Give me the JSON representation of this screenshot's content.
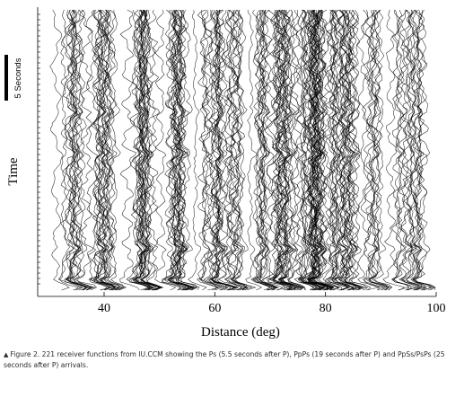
{
  "chart_data": {
    "type": "line",
    "title": "",
    "xlabel": "Distance (deg)",
    "ylabel": "Time",
    "xlim": [
      28,
      100
    ],
    "x_ticks": [
      40,
      60,
      80,
      100
    ],
    "x_tick_labels": [
      "40",
      "60",
      "80",
      "100"
    ],
    "scale_bar": {
      "label": "5 Seconds",
      "seconds": 5
    },
    "time_window_seconds": 40,
    "trace_count": 221,
    "dense_distance_bands_deg": [
      [
        33,
        37
      ],
      [
        39,
        41
      ],
      [
        46,
        48
      ],
      [
        52,
        54
      ],
      [
        58,
        64
      ],
      [
        67,
        69
      ],
      [
        71,
        73
      ],
      [
        77,
        79
      ],
      [
        80,
        85
      ],
      [
        88,
        90
      ],
      [
        93,
        96
      ]
    ],
    "phases": [
      {
        "name": "Ps",
        "seconds_after_P": 5.5
      },
      {
        "name": "PpPs",
        "seconds_after_P": 19
      },
      {
        "name": "PpSs/PsPs",
        "seconds_after_P": 25
      }
    ],
    "grid": false,
    "line_color": "#000000"
  },
  "caption": {
    "marker": "▲",
    "text": "Figure 2. 221 receiver functions from IU.CCM showing the Ps (5.5 seconds after P), PpPs (19 seconds after P) and PpSs/PsPs (25 seconds after P) arrivals."
  }
}
